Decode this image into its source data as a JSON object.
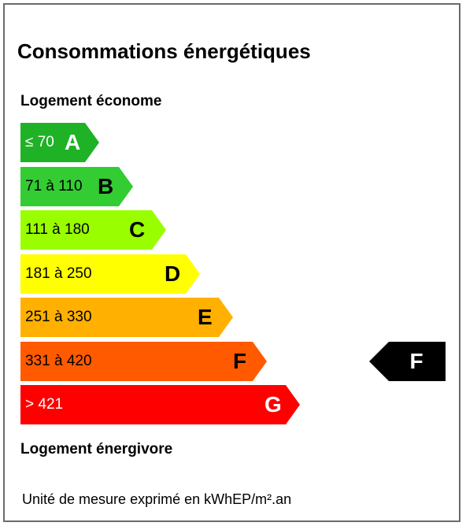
{
  "title": "Consommations énergétiques",
  "label_top": "Logement économe",
  "label_bottom": "Logement énergivore",
  "unit_note": "Unité de mesure exprimé en kWhEP/m².an",
  "classes": [
    {
      "letter": "A",
      "range": "≤ 70",
      "color": "#1fb227",
      "text_color": "light"
    },
    {
      "letter": "B",
      "range": "71 à 110",
      "color": "#33cc33",
      "text_color": "dark"
    },
    {
      "letter": "C",
      "range": "111 à 180",
      "color": "#99ff00",
      "text_color": "dark"
    },
    {
      "letter": "D",
      "range": "181 à 250",
      "color": "#ffff00",
      "text_color": "dark"
    },
    {
      "letter": "E",
      "range": "251 à 330",
      "color": "#ffb000",
      "text_color": "dark"
    },
    {
      "letter": "F",
      "range": "331 à 420",
      "color": "#ff5a00",
      "text_color": "dark"
    },
    {
      "letter": "G",
      "range": "> 421",
      "color": "#ff0000",
      "text_color": "light"
    }
  ],
  "current_class": {
    "letter": "F",
    "color": "#000000"
  }
}
